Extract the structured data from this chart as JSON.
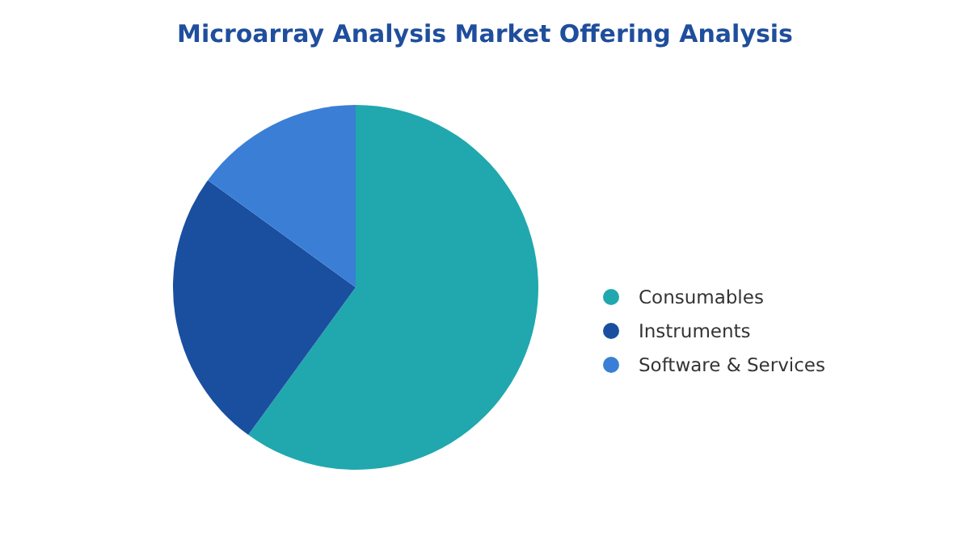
{
  "chart_data": {
    "type": "pie",
    "title": "Microarray Analysis Market Offering Analysis",
    "categories": [
      "Consumables",
      "Instruments",
      "Software & Services"
    ],
    "values": [
      60,
      25,
      15
    ],
    "colors": [
      "#20a8ae",
      "#1a4fa0",
      "#3a7fd5"
    ],
    "legend": "right"
  }
}
